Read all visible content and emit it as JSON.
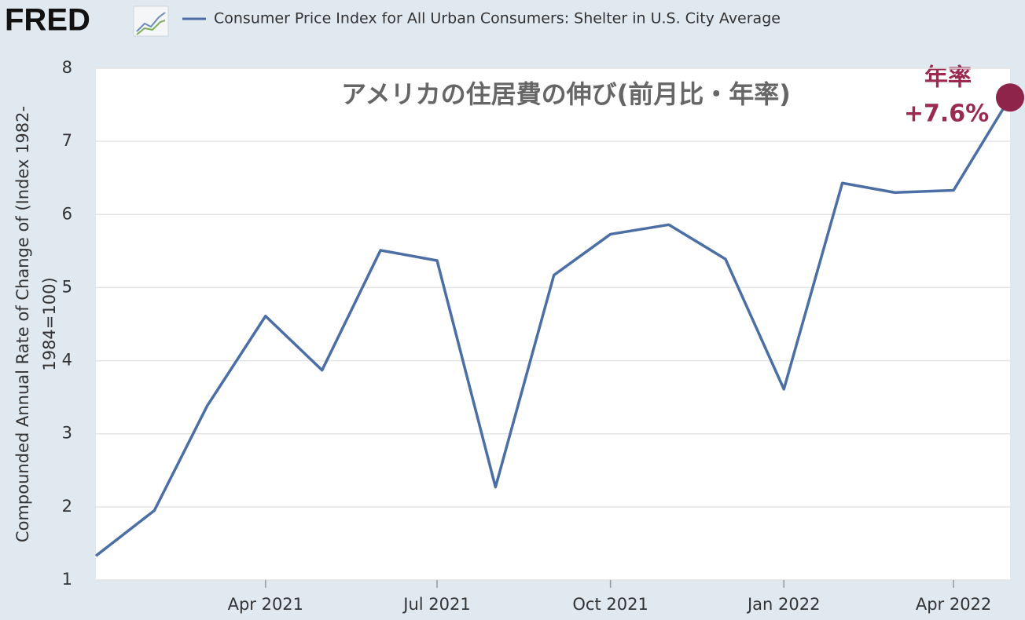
{
  "logo": "FRED",
  "chart_data": {
    "type": "line",
    "legend_label": "Consumer Price Index for All Urban Consumers: Shelter in U.S. City Average",
    "title": "アメリカの住居費の伸び(前月比・年率)",
    "annotation_lines": [
      "年率",
      "+7.6%"
    ],
    "ylabel_lines": [
      "Compounded Annual Rate of Change of (Index 1982-",
      "1984=100)"
    ],
    "x": [
      "2021-01",
      "2021-02",
      "2021-03",
      "2021-04",
      "2021-05",
      "2021-06",
      "2021-07",
      "2021-08",
      "2021-09",
      "2021-10",
      "2021-11",
      "2021-12",
      "2022-01",
      "2022-02",
      "2022-03",
      "2022-04",
      "2022-05"
    ],
    "series": [
      {
        "name": "Consumer Price Index for All Urban Consumers: Shelter in U.S. City Average",
        "color": "#4b6fa5",
        "values": [
          1.33,
          1.95,
          3.38,
          4.61,
          3.87,
          5.51,
          5.37,
          2.27,
          5.17,
          5.73,
          5.86,
          5.39,
          3.61,
          6.43,
          6.3,
          6.33,
          7.6
        ]
      }
    ],
    "highlight_color": "#8e2449",
    "xlim": [
      "2021-01",
      "2022-05"
    ],
    "xticks": [
      {
        "value": "2021-04",
        "label": "Apr 2021"
      },
      {
        "value": "2021-07",
        "label": "Jul 2021"
      },
      {
        "value": "2021-10",
        "label": "Oct 2021"
      },
      {
        "value": "2022-01",
        "label": "Jan 2022"
      },
      {
        "value": "2022-04",
        "label": "Apr 2022"
      }
    ],
    "ylim": [
      1,
      8
    ],
    "yticks": [
      1,
      2,
      3,
      4,
      5,
      6,
      7,
      8
    ],
    "grid": true
  }
}
